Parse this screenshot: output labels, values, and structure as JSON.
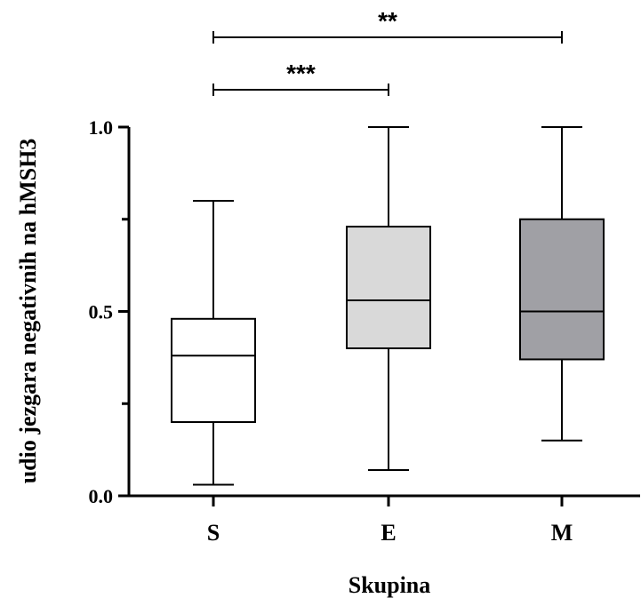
{
  "chart_data": {
    "type": "boxplot",
    "title": "",
    "xlabel": "Skupina",
    "ylabel": "udio jezgara negativnih na hMSH3",
    "ylim": [
      0,
      1
    ],
    "yticks": [
      0.0,
      0.5,
      1.0
    ],
    "ytick_labels": [
      "0.0",
      "0.5",
      "1.0"
    ],
    "grid": false,
    "categories": [
      "S",
      "E",
      "M"
    ],
    "boxes": [
      {
        "category": "S",
        "min": 0.03,
        "q1": 0.2,
        "median": 0.38,
        "q3": 0.48,
        "max": 0.8,
        "fill": "#ffffff"
      },
      {
        "category": "E",
        "min": 0.07,
        "q1": 0.4,
        "median": 0.53,
        "q3": 0.73,
        "max": 1.0,
        "fill": "#d9d9d9"
      },
      {
        "category": "M",
        "min": 0.15,
        "q1": 0.37,
        "median": 0.5,
        "q3": 0.75,
        "max": 1.0,
        "fill": "#a0a0a5"
      }
    ],
    "significance": [
      {
        "from": "S",
        "to": "E",
        "label": "***"
      },
      {
        "from": "S",
        "to": "M",
        "label": "**"
      }
    ]
  }
}
